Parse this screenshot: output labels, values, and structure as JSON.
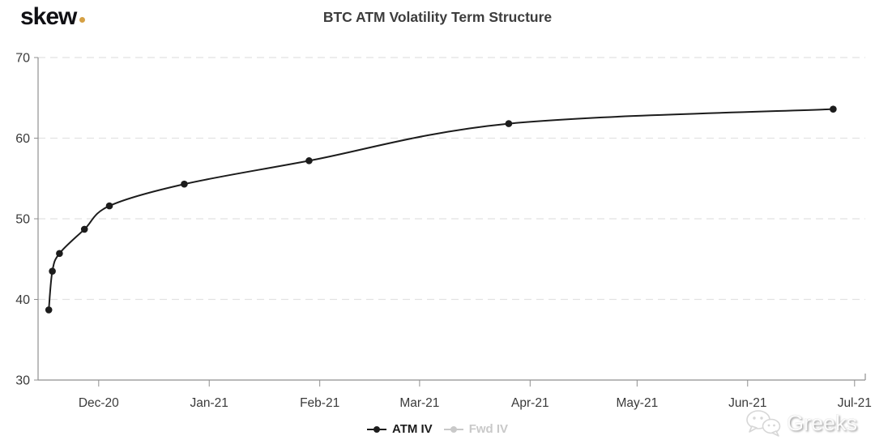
{
  "header": {
    "logo_text": "skew",
    "title": "BTC ATM Volatility Term Structure"
  },
  "colors": {
    "logo_dot": "#D5A044",
    "series_atm": "#1c1c1c",
    "series_fwd": "#c9c9c9",
    "grid": "#e2e2e2",
    "axis": "#8f8f8f",
    "axis_label": "#3a3a3a",
    "background": "#ffffff"
  },
  "chart_data": {
    "type": "line",
    "title": "BTC ATM Volatility Term Structure",
    "xlabel": "",
    "ylabel": "",
    "grid": "horizontal-dashed",
    "legend_position": "bottom-center",
    "y_axis": {
      "min": 30,
      "max": 70,
      "ticks": [
        70,
        60,
        50,
        40,
        30
      ]
    },
    "x_axis": {
      "start": "2020-11-14",
      "end": "2021-07-04",
      "total_days": 232,
      "ticks": [
        {
          "label": "Dec-20",
          "day": 17
        },
        {
          "label": "Jan-21",
          "day": 48
        },
        {
          "label": "Feb-21",
          "day": 79
        },
        {
          "label": "Mar-21",
          "day": 107
        },
        {
          "label": "Apr-21",
          "day": 138
        },
        {
          "label": "May-21",
          "day": 168
        },
        {
          "label": "Jun-21",
          "day": 199
        },
        {
          "label": "Jul-21",
          "day": 229
        }
      ]
    },
    "series": [
      {
        "name": "ATM IV",
        "visible": true,
        "marker": "circle",
        "points": [
          {
            "expiry": "2020-11-17",
            "day": 3,
            "iv": 38.7
          },
          {
            "expiry": "2020-11-18",
            "day": 4,
            "iv": 43.5
          },
          {
            "expiry": "2020-11-20",
            "day": 6,
            "iv": 45.7
          },
          {
            "expiry": "2020-11-27",
            "day": 13,
            "iv": 48.7
          },
          {
            "expiry": "2020-12-04",
            "day": 20,
            "iv": 51.6
          },
          {
            "expiry": "2020-12-25",
            "day": 41,
            "iv": 54.3
          },
          {
            "expiry": "2021-01-29",
            "day": 76,
            "iv": 57.2
          },
          {
            "expiry": "2021-03-26",
            "day": 132,
            "iv": 61.8
          },
          {
            "expiry": "2021-06-25",
            "day": 223,
            "iv": 63.6
          }
        ]
      },
      {
        "name": "Fwd IV",
        "visible": false,
        "marker": "circle",
        "points": []
      }
    ]
  },
  "legend": [
    {
      "label": "ATM IV",
      "active": true
    },
    {
      "label": "Fwd IV",
      "active": false
    }
  ],
  "watermark": {
    "text": "Greeks",
    "icon": "wechat-icon"
  }
}
